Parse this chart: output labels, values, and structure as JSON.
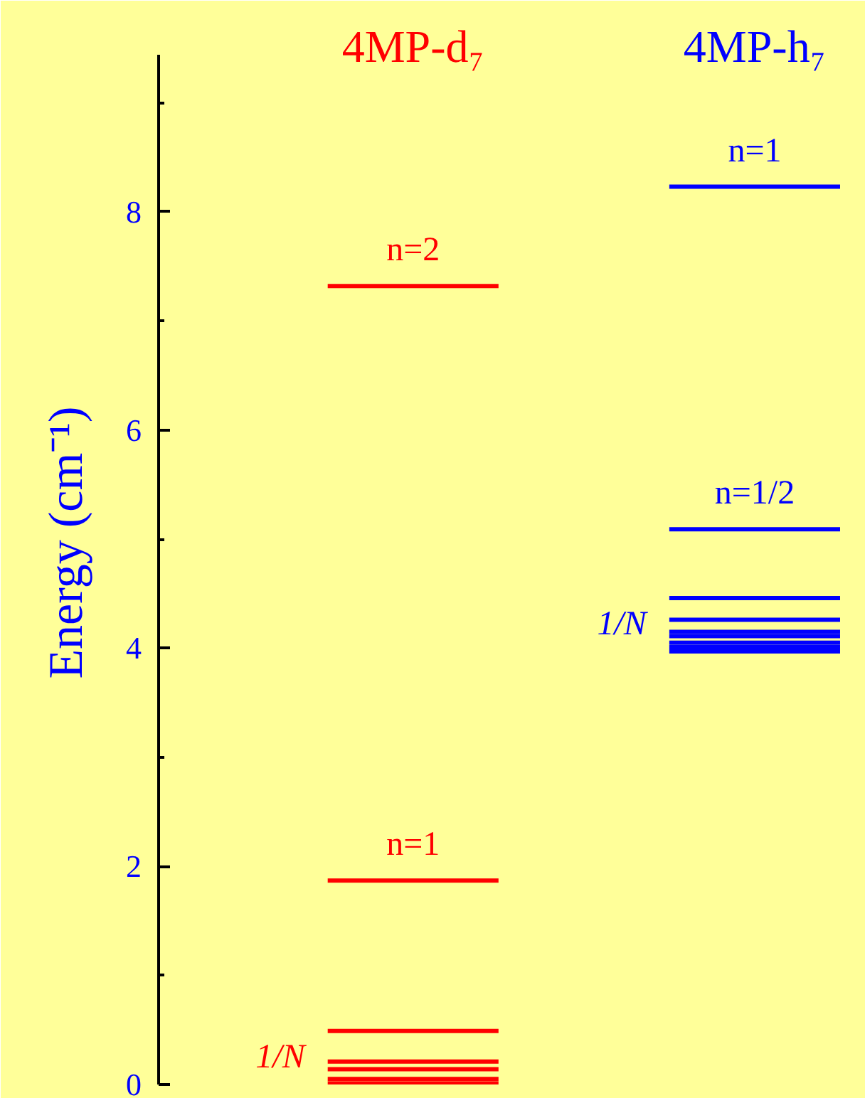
{
  "chart_data": {
    "type": "line",
    "categories": [
      null,
      "4MP-d₇",
      null,
      null,
      null,
      "4MP-h₇",
      null
    ],
    "ylabel": "Energy (cm⁻¹)",
    "ylim": [
      0,
      9.44
    ],
    "yticks": [
      0,
      2,
      4,
      6,
      8
    ],
    "annotations": [
      "1/N",
      "1/N"
    ],
    "series": [
      {
        "name": "n=2",
        "color": "#ff0000",
        "values": [
          7.32,
          7.32,
          7.32,
          null,
          null,
          null,
          null
        ]
      },
      {
        "name": "n=1",
        "color": "#ff0000",
        "values": [
          1.87,
          1.87,
          1.87,
          null,
          null,
          null,
          null
        ]
      },
      {
        "color": "#ff0000",
        "values": [
          0.49,
          0.49,
          0.49,
          null,
          null,
          null,
          null
        ]
      },
      {
        "color": "#ff0000",
        "values": [
          0.21,
          0.21,
          0.21,
          null,
          null,
          null,
          null
        ]
      },
      {
        "color": "#ff0000",
        "values": [
          0.14,
          0.14,
          0.14,
          null,
          null,
          null,
          null
        ]
      },
      {
        "color": "#ff0000",
        "values": [
          0.05,
          0.05,
          0.05,
          null,
          null,
          null,
          null
        ]
      },
      {
        "color": "#ff0000",
        "values": [
          0.01,
          0.01,
          0.01,
          null,
          null,
          null,
          null
        ]
      },
      {
        "name": "n=1",
        "color": "#0000ff",
        "values": [
          null,
          null,
          null,
          null,
          8.23,
          8.23,
          8.23
        ]
      },
      {
        "name": "n=1/2",
        "color": "#0000ff",
        "values": [
          null,
          null,
          null,
          null,
          5.09,
          5.09,
          5.09
        ]
      },
      {
        "color": "#0000ff",
        "values": [
          null,
          null,
          null,
          null,
          4.46,
          4.46,
          4.46
        ]
      },
      {
        "color": "#0000ff",
        "values": [
          null,
          null,
          null,
          null,
          4.26,
          4.26,
          4.26
        ]
      },
      {
        "color": "#0000ff",
        "values": [
          null,
          null,
          null,
          null,
          4.15,
          4.15,
          4.15
        ]
      },
      {
        "color": "#0000ff",
        "values": [
          null,
          null,
          null,
          null,
          4.11,
          4.11,
          4.11
        ]
      },
      {
        "color": "#0000ff",
        "values": [
          null,
          null,
          null,
          null,
          4.05,
          4.05,
          4.05
        ]
      },
      {
        "color": "#0000ff",
        "values": [
          null,
          null,
          null,
          null,
          4.01,
          4.01,
          4.01
        ]
      },
      {
        "color": "#0000ff",
        "values": [
          null,
          null,
          null,
          null,
          3.97,
          3.97,
          3.97
        ]
      }
    ]
  }
}
